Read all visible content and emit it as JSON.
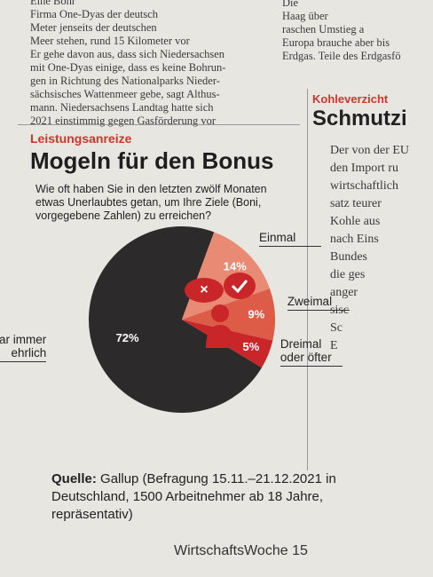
{
  "article_left": {
    "lines": [
      "Eine Bohr",
      "Firma One-Dyas der deutsch",
      "Meter jenseits der deutschen",
      "Meer stehen, rund 15 Kilometer vor",
      "Er gehe davon aus, dass sich Niedersachsen",
      "mit One-Dyas einige, dass es keine Bohrun-",
      "gen in Richtung des Nationalparks Nieder-",
      "sächsisches Wattenmeer gebe, sagt Althus-",
      "mann. Niedersachsens Landtag hatte sich",
      "2021 einstimmig gegen Gasförderung vor"
    ]
  },
  "article_right": {
    "lines": [
      "Die",
      "Haag über",
      "raschen Umstieg a",
      "Europa brauche aber bis",
      "Erdgas. Teile des Erdgasfö"
    ]
  },
  "side_article": {
    "kicker": "Kohleverzicht",
    "title": "Schmutzi",
    "lines": [
      "Der von der EU",
      "den Import ru",
      "wirtschaftlich",
      "satz teurer",
      "Kohle aus",
      "nach Eins",
      "Bundes",
      "die ges",
      "anger",
      "sisc",
      "Sc",
      "E"
    ]
  },
  "chart_data": {
    "type": "pie",
    "kicker": "Leistungsanreize",
    "title": "Mogeln für den Bonus",
    "subtitle": "Wie oft haben Sie in den letzten zwölf Monaten etwas Unerlaubtes getan, um Ihre Ziele (Boni, vorgegebene Zahlen) zu erreichen?",
    "categories": [
      "War immer ehrlich",
      "Einmal",
      "Zweimal",
      "Dreimal oder öfter"
    ],
    "values": [
      72,
      14,
      9,
      5
    ],
    "value_labels": [
      "72%",
      "14%",
      "9%",
      "5%"
    ],
    "colors": [
      "#2c2a2a",
      "#e98a74",
      "#dc5c47",
      "#c9262a"
    ],
    "source_label": "Quelle:",
    "source": "Gallup (Befragung 15.11.–21.12.2021 in Deutschland, 1500 Arbeitnehmer ab 18 Jahre, repräsentativ)"
  },
  "footer": "WirtschaftsWoche 15"
}
